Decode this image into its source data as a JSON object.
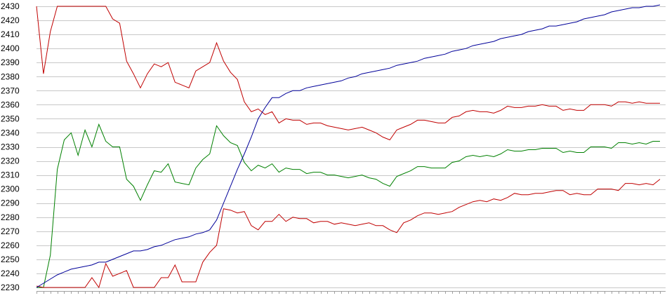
{
  "chart_data": {
    "type": "line",
    "title": "",
    "xlabel": "",
    "ylabel": "",
    "ylim": [
      2230,
      2430
    ],
    "yticks": [
      2230,
      2240,
      2250,
      2260,
      2270,
      2280,
      2290,
      2300,
      2310,
      2320,
      2330,
      2340,
      2350,
      2360,
      2370,
      2380,
      2390,
      2400,
      2410,
      2420,
      2430
    ],
    "grid": true,
    "legend": "none",
    "x": [
      0,
      1,
      2,
      3,
      4,
      5,
      6,
      7,
      8,
      9,
      10,
      11,
      12,
      13,
      14,
      15,
      16,
      17,
      18,
      19,
      20,
      21,
      22,
      23,
      24,
      25,
      26,
      27,
      28,
      29,
      30,
      31,
      32,
      33,
      34,
      35,
      36,
      37,
      38,
      39,
      40,
      41,
      42,
      43,
      44,
      45,
      46,
      47,
      48,
      49,
      50,
      51,
      52,
      53,
      54,
      55,
      56,
      57,
      58,
      59,
      60,
      61,
      62,
      63,
      64,
      65,
      66,
      67,
      68,
      69,
      70,
      71,
      72,
      73,
      74,
      75,
      76,
      77,
      78,
      79,
      80,
      81,
      82,
      83,
      84,
      85,
      86,
      87,
      88,
      89,
      90
    ],
    "xlim": [
      0,
      90
    ],
    "series": [
      {
        "color": "#c00000",
        "values": [
          2430,
          2382,
          2412,
          2430,
          2430,
          2430,
          2430,
          2430,
          2430,
          2430,
          2430,
          2421,
          2418,
          2391,
          2382,
          2372,
          2382,
          2389,
          2387,
          2390,
          2376,
          2374,
          2372,
          2384,
          2387,
          2390,
          2404,
          2391,
          2383,
          2378,
          2362,
          2355,
          2357,
          2353,
          2355,
          2347,
          2350,
          2349,
          2349,
          2346,
          2347,
          2347,
          2345,
          2344,
          2343,
          2342,
          2343,
          2344,
          2342,
          2340,
          2337,
          2335,
          2342,
          2344,
          2346,
          2349,
          2349,
          2348,
          2347,
          2347,
          2351,
          2352,
          2355,
          2356,
          2355,
          2355,
          2354,
          2356,
          2359,
          2358,
          2358,
          2359,
          2359,
          2360,
          2359,
          2359,
          2356,
          2357,
          2356,
          2356,
          2360,
          2360,
          2360,
          2359,
          2362,
          2362,
          2361,
          2362,
          2361,
          2361,
          2361
        ]
      },
      {
        "color": "#008000",
        "values": [
          2230,
          2230,
          2253,
          2314,
          2335,
          2340,
          2324,
          2342,
          2330,
          2346,
          2334,
          2330,
          2330,
          2307,
          2302,
          2292,
          2303,
          2313,
          2312,
          2318,
          2305,
          2304,
          2303,
          2315,
          2321,
          2325,
          2345,
          2338,
          2333,
          2331,
          2319,
          2313,
          2317,
          2315,
          2318,
          2312,
          2315,
          2314,
          2314,
          2311,
          2312,
          2312,
          2310,
          2310,
          2309,
          2308,
          2309,
          2310,
          2308,
          2307,
          2304,
          2302,
          2309,
          2311,
          2313,
          2316,
          2316,
          2315,
          2315,
          2315,
          2319,
          2320,
          2323,
          2324,
          2323,
          2324,
          2323,
          2325,
          2328,
          2327,
          2327,
          2328,
          2328,
          2329,
          2329,
          2329,
          2326,
          2327,
          2326,
          2326,
          2330,
          2330,
          2330,
          2329,
          2333,
          2333,
          2332,
          2333,
          2332,
          2334,
          2334
        ]
      },
      {
        "color": "#c00000",
        "values": [
          2231,
          2230,
          2230,
          2230,
          2230,
          2230,
          2230,
          2230,
          2237,
          2230,
          2247,
          2238,
          2240,
          2242,
          2230,
          2230,
          2230,
          2230,
          2237,
          2237,
          2246,
          2234,
          2234,
          2234,
          2248,
          2255,
          2260,
          2286,
          2285,
          2283,
          2284,
          2274,
          2271,
          2277,
          2277,
          2282,
          2277,
          2280,
          2279,
          2279,
          2276,
          2277,
          2277,
          2275,
          2276,
          2275,
          2274,
          2275,
          2276,
          2274,
          2274,
          2271,
          2269,
          2276,
          2278,
          2281,
          2283,
          2283,
          2282,
          2283,
          2284,
          2287,
          2289,
          2291,
          2292,
          2291,
          2293,
          2292,
          2294,
          2297,
          2296,
          2296,
          2297,
          2297,
          2298,
          2299,
          2299,
          2296,
          2297,
          2296,
          2296,
          2300,
          2300,
          2300,
          2299,
          2304,
          2304,
          2303,
          2304,
          2303,
          2307
        ]
      },
      {
        "color": "#000099",
        "values": [
          2230,
          2233,
          2236,
          2239,
          2241,
          2243,
          2244,
          2245,
          2246,
          2248,
          2248,
          2250,
          2252,
          2254,
          2256,
          2256,
          2257,
          2259,
          2260,
          2262,
          2264,
          2265,
          2266,
          2268,
          2269,
          2271,
          2278,
          2290,
          2302,
          2314,
          2325,
          2337,
          2350,
          2358,
          2365,
          2365,
          2368,
          2370,
          2370,
          2372,
          2373,
          2374,
          2375,
          2376,
          2377,
          2379,
          2380,
          2382,
          2383,
          2384,
          2385,
          2386,
          2388,
          2389,
          2390,
          2391,
          2393,
          2394,
          2395,
          2396,
          2398,
          2399,
          2400,
          2402,
          2403,
          2404,
          2405,
          2407,
          2408,
          2409,
          2410,
          2412,
          2413,
          2414,
          2416,
          2416,
          2417,
          2418,
          2419,
          2421,
          2422,
          2423,
          2424,
          2426,
          2427,
          2428,
          2429,
          2429,
          2430,
          2430,
          2431
        ]
      }
    ]
  }
}
